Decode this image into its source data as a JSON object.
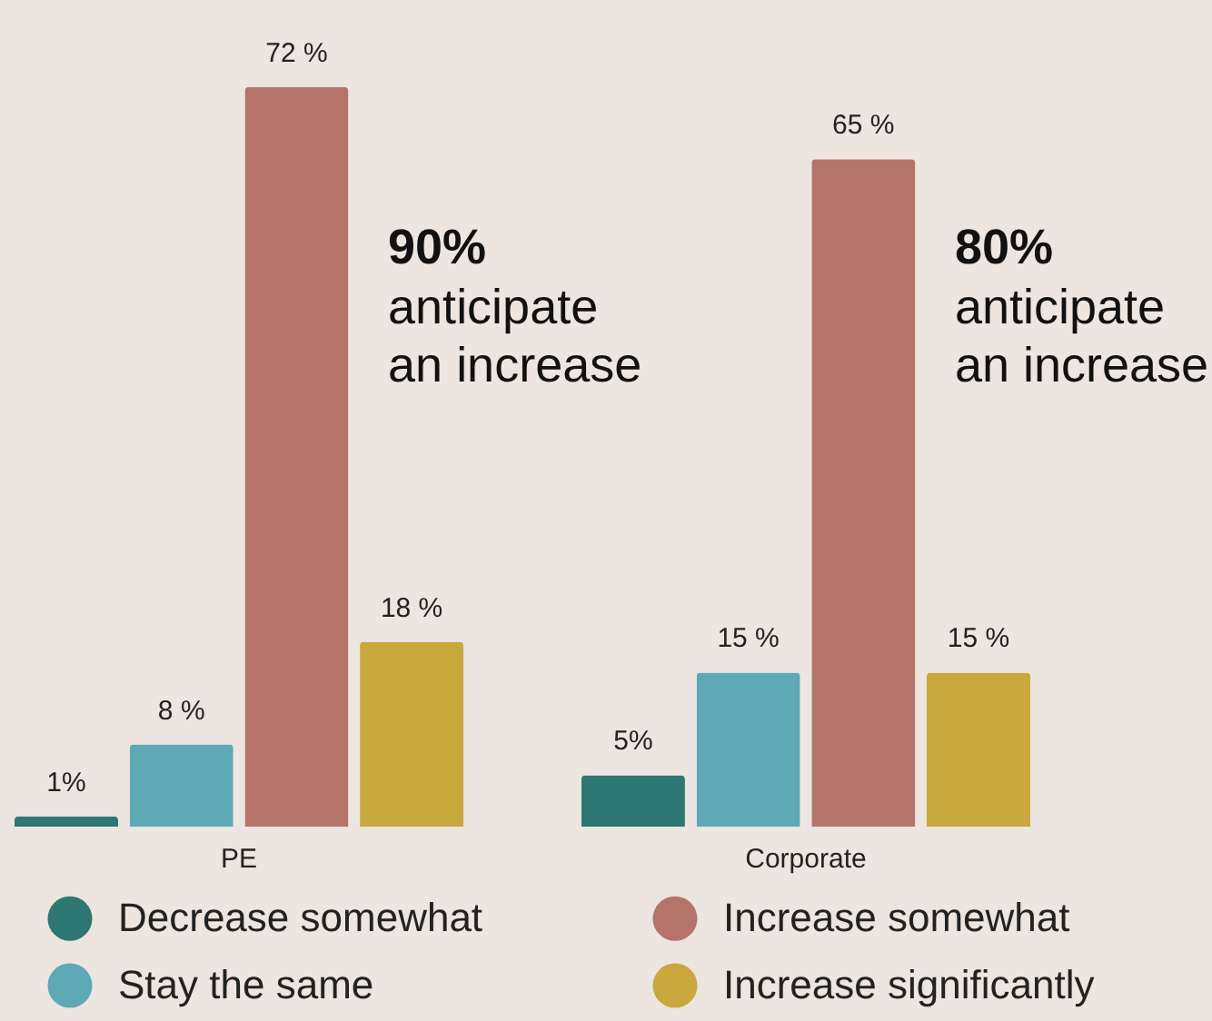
{
  "chart_data": {
    "type": "bar",
    "categories": [
      "PE",
      "Corporate"
    ],
    "series": [
      {
        "name": "Decrease somewhat",
        "color": "#2e7772",
        "values": [
          1,
          5
        ],
        "value_labels": [
          "1%",
          "5%"
        ]
      },
      {
        "name": "Stay the same",
        "color": "#5ea9b6",
        "values": [
          8,
          15
        ],
        "value_labels": [
          "8 %",
          "15 %"
        ]
      },
      {
        "name": "Increase somewhat",
        "color": "#b5746a",
        "values": [
          72,
          65
        ],
        "value_labels": [
          "72 %",
          "65 %"
        ]
      },
      {
        "name": "Increase significantly",
        "color": "#c9a83e",
        "values": [
          18,
          15
        ],
        "value_labels": [
          "18 %",
          "15 %"
        ]
      }
    ],
    "annotations": [
      "90%\nanticipate\nan increase",
      "80%\nanticipate\nan increase"
    ],
    "legend": "bottom"
  }
}
